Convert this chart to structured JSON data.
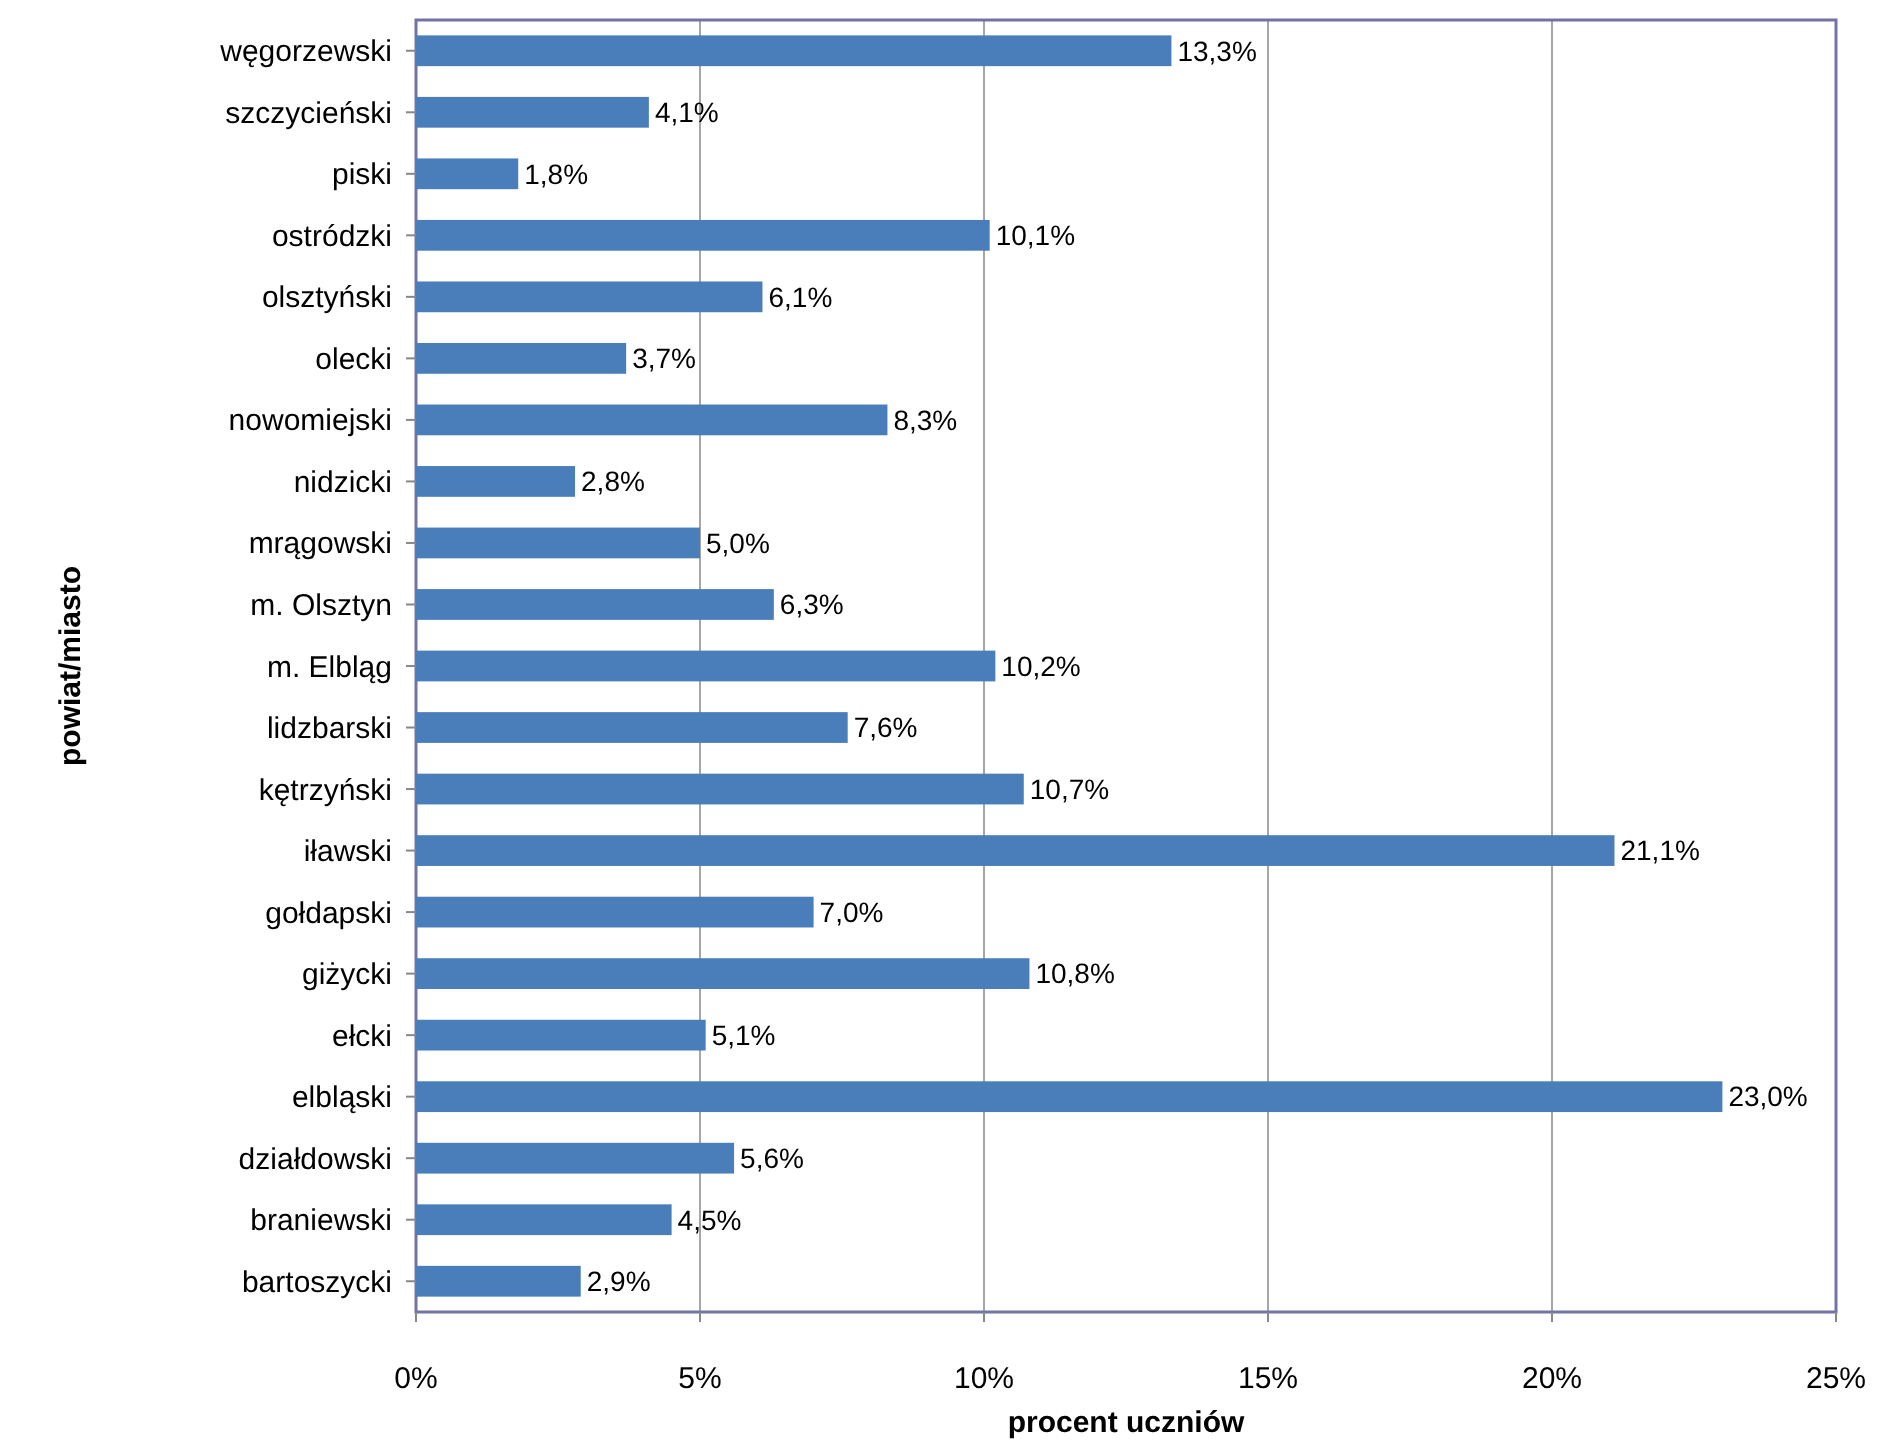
{
  "chart_data": {
    "type": "bar",
    "orientation": "horizontal",
    "xlabel": "procent uczniów",
    "ylabel": "powiat/miasto",
    "categories": [
      "węgorzewski",
      "szczycieński",
      "piski",
      "ostródzki",
      "olsztyński",
      "olecki",
      "nowomiejski",
      "nidzicki",
      "mrągowski",
      "m. Olsztyn",
      "m. Elbląg",
      "lidzbarski",
      "kętrzyński",
      "iławski",
      "gołdapski",
      "giżycki",
      "ełcki",
      "elbląski",
      "działdowski",
      "braniewski",
      "bartoszycki"
    ],
    "values": [
      13.3,
      4.1,
      1.8,
      10.1,
      6.1,
      3.7,
      8.3,
      2.8,
      5.0,
      6.3,
      10.2,
      7.6,
      10.7,
      21.1,
      7.0,
      10.8,
      5.1,
      23.0,
      5.6,
      4.5,
      2.9
    ],
    "value_labels": [
      "13,3%",
      "4,1%",
      "1,8%",
      "10,1%",
      "6,1%",
      "3,7%",
      "8,3%",
      "2,8%",
      "5,0%",
      "6,3%",
      "10,2%",
      "7,6%",
      "10,7%",
      "21,1%",
      "7,0%",
      "10,8%",
      "5,1%",
      "23,0%",
      "5,6%",
      "4,5%",
      "2,9%"
    ],
    "color": "#4a7ebb",
    "xlim": [
      0,
      25
    ],
    "xticks": [
      {
        "value": 0,
        "label": "0%"
      },
      {
        "value": 5,
        "label": "5%"
      },
      {
        "value": 10,
        "label": "10%"
      },
      {
        "value": 15,
        "label": "15%"
      },
      {
        "value": 20,
        "label": "20%"
      },
      {
        "value": 25,
        "label": "25%"
      }
    ],
    "grid": "x"
  }
}
